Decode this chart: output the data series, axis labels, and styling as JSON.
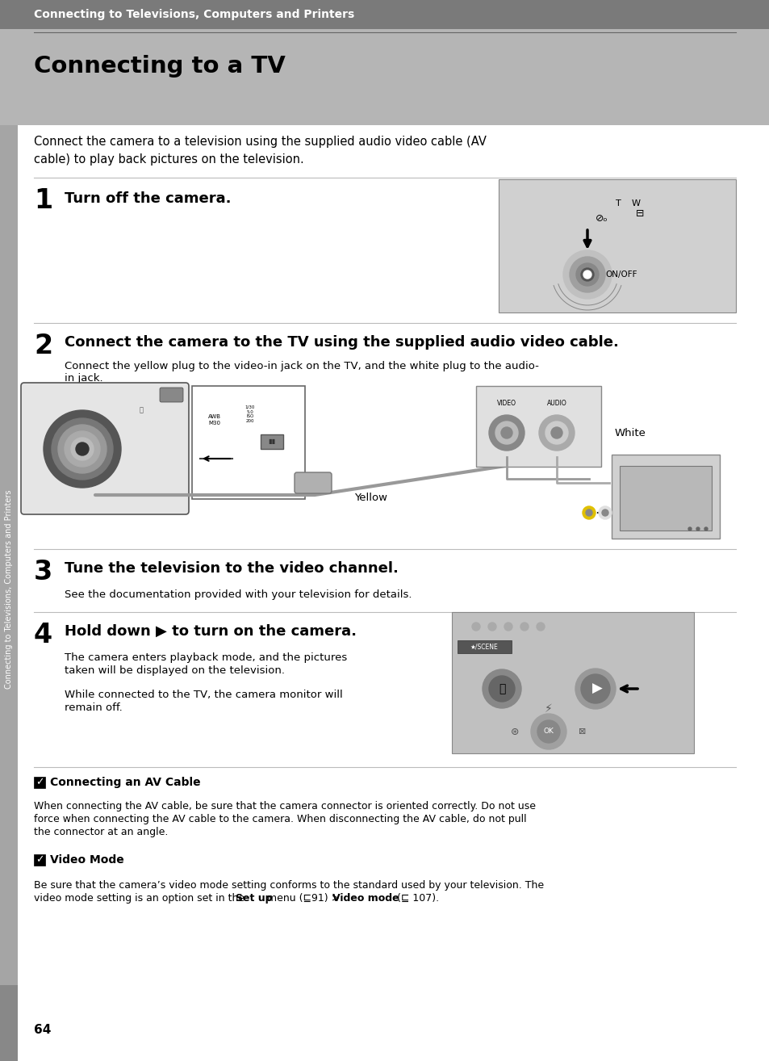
{
  "bg_color": "#ffffff",
  "header_bg": "#8c8c8c",
  "title_bg": "#b0b0b0",
  "sidebar_bg": "#a0a0a0",
  "header_text": "Connecting to Televisions, Computers and Printers",
  "title": "Connecting to a TV",
  "intro_line1": "Connect the camera to a television using the supplied audio video cable (AV",
  "intro_line2": "cable) to play back pictures on the television.",
  "step1_num": "1",
  "step1_text": "Turn off the camera.",
  "step2_num": "2",
  "step2_heading": "Connect the camera to the TV using the supplied audio video cable.",
  "step2_body1": "Connect the yellow plug to the video-in jack on the TV, and the white plug to the audio-",
  "step2_body2": "in jack.",
  "step2_yellow": "Yellow",
  "step2_white": "White",
  "step3_num": "3",
  "step3_heading": "Tune the television to the video channel.",
  "step3_body": "See the documentation provided with your television for details.",
  "step4_num": "4",
  "step4_heading": "Hold down ▶ to turn on the camera.",
  "step4_body1": "The camera enters playback mode, and the pictures",
  "step4_body2": "taken will be displayed on the television.",
  "step4_body3": "While connected to the TV, the camera monitor will",
  "step4_body4": "remain off.",
  "note1_title": "Connecting an AV Cable",
  "note1_body1": "When connecting the AV cable, be sure that the camera connector is oriented correctly. Do not use",
  "note1_body2": "force when connecting the AV cable to the camera. When disconnecting the AV cable, do not pull",
  "note1_body3": "the connector at an angle.",
  "note2_title": "Video Mode",
  "note2_body1": "Be sure that the camera’s video mode setting conforms to the standard used by your television. The",
  "note2_body2_pre": "video mode setting is an option set in the ",
  "note2_body2_bold1": "Set up",
  "note2_body2_mid": " menu (⊑91) > ",
  "note2_body2_bold2": "Video mode",
  "note2_body2_end": " (⊑ 107).",
  "page_num": "64",
  "sidebar_text": "Connecting to Televisions, Computers and Printers"
}
